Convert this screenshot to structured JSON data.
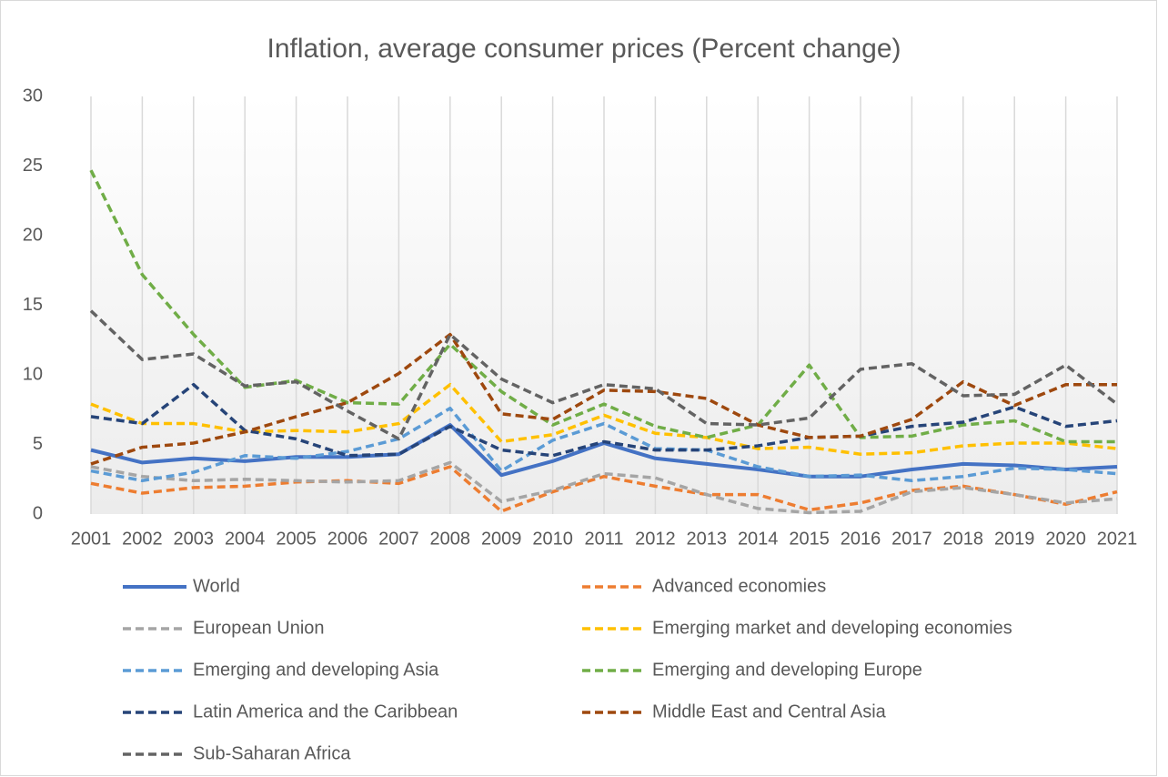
{
  "chart_data": {
    "type": "line",
    "title": "Inflation, average consumer prices (Percent change)",
    "categories": [
      "2001",
      "2002",
      "2003",
      "2004",
      "2005",
      "2006",
      "2007",
      "2008",
      "2009",
      "2010",
      "2011",
      "2012",
      "2013",
      "2014",
      "2015",
      "2016",
      "2017",
      "2018",
      "2019",
      "2020",
      "2021"
    ],
    "ylim": [
      0,
      30
    ],
    "yticks": [
      0,
      5,
      10,
      15,
      20,
      25,
      30
    ],
    "grid": "x",
    "legend": "bottom",
    "series": [
      {
        "name": "World",
        "color": "#4472c4",
        "dashed": false,
        "values": [
          4.6,
          3.7,
          4.0,
          3.8,
          4.1,
          4.1,
          4.3,
          6.4,
          2.8,
          3.8,
          5.1,
          4.0,
          3.6,
          3.2,
          2.7,
          2.7,
          3.2,
          3.6,
          3.5,
          3.2,
          3.4
        ]
      },
      {
        "name": "Advanced economies",
        "color": "#ed7d31",
        "dashed": true,
        "values": [
          2.2,
          1.5,
          1.9,
          2.0,
          2.3,
          2.4,
          2.2,
          3.4,
          0.2,
          1.6,
          2.7,
          2.0,
          1.4,
          1.4,
          0.3,
          0.8,
          1.7,
          2.0,
          1.4,
          0.7,
          1.6
        ]
      },
      {
        "name": "European Union",
        "color": "#a5a5a5",
        "dashed": true,
        "values": [
          3.4,
          2.7,
          2.4,
          2.5,
          2.4,
          2.3,
          2.4,
          3.7,
          0.9,
          1.7,
          2.9,
          2.6,
          1.4,
          0.4,
          0.1,
          0.2,
          1.6,
          1.9,
          1.4,
          0.8,
          1.1
        ]
      },
      {
        "name": "Emerging market and developing economies",
        "color": "#ffc000",
        "dashed": true,
        "values": [
          7.9,
          6.5,
          6.5,
          5.9,
          6.0,
          5.9,
          6.5,
          9.3,
          5.2,
          5.7,
          7.1,
          5.8,
          5.5,
          4.7,
          4.8,
          4.3,
          4.4,
          4.9,
          5.1,
          5.1,
          4.7
        ]
      },
      {
        "name": "Emerging and developing Asia",
        "color": "#5b9bd5",
        "dashed": true,
        "values": [
          3.1,
          2.4,
          3.0,
          4.2,
          4.0,
          4.5,
          5.4,
          7.6,
          3.1,
          5.3,
          6.5,
          4.7,
          4.6,
          3.4,
          2.7,
          2.8,
          2.4,
          2.7,
          3.3,
          3.2,
          2.9
        ]
      },
      {
        "name": "Emerging and developing Europe",
        "color": "#70ad47",
        "dashed": true,
        "values": [
          24.7,
          17.2,
          12.9,
          9.1,
          9.6,
          8.0,
          7.9,
          12.2,
          8.8,
          6.4,
          7.9,
          6.3,
          5.5,
          6.4,
          10.7,
          5.5,
          5.6,
          6.4,
          6.7,
          5.2,
          5.2
        ]
      },
      {
        "name": "Latin America and the Caribbean",
        "color": "#264478",
        "dashed": true,
        "values": [
          7.0,
          6.5,
          9.3,
          6.0,
          5.4,
          4.2,
          4.3,
          6.3,
          4.6,
          4.2,
          5.2,
          4.6,
          4.6,
          4.9,
          5.5,
          5.6,
          6.3,
          6.6,
          7.7,
          6.3,
          6.7
        ]
      },
      {
        "name": "Middle East and Central Asia",
        "color": "#9e480e",
        "dashed": true,
        "values": [
          3.6,
          4.8,
          5.1,
          5.9,
          7.0,
          8.0,
          10.1,
          12.9,
          7.2,
          6.8,
          8.9,
          8.8,
          8.3,
          6.4,
          5.5,
          5.6,
          6.8,
          9.5,
          7.8,
          9.3,
          9.3
        ]
      },
      {
        "name": "Sub-Saharan Africa",
        "color": "#636363",
        "dashed": true,
        "values": [
          14.6,
          11.1,
          11.5,
          9.2,
          9.5,
          7.4,
          5.4,
          12.9,
          9.7,
          8.0,
          9.3,
          9.0,
          6.5,
          6.4,
          6.9,
          10.4,
          10.8,
          8.5,
          8.6,
          10.7,
          7.9
        ]
      }
    ]
  }
}
